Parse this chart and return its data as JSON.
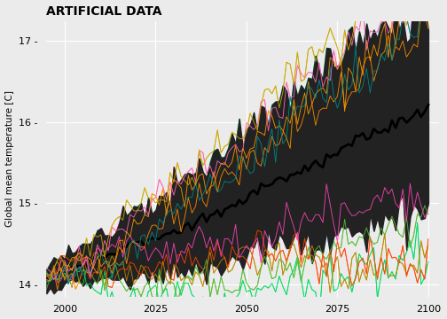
{
  "title": "ARTIFICIAL DATA",
  "ylabel": "Global mean temperature [C]",
  "xlim": [
    1995,
    2103
  ],
  "ylim": [
    13.85,
    17.25
  ],
  "xticks": [
    2000,
    2025,
    2050,
    2075,
    2100
  ],
  "yticks": [
    14,
    15,
    16,
    17
  ],
  "background_color": "#EBEBEB",
  "grid_color": "white",
  "mean_color": "black",
  "band_color": "#222222",
  "seed": 123,
  "n_models": 25,
  "line_colors": [
    "#8080FF",
    "#00BFFF",
    "#FF69B4",
    "#00CED1",
    "#55BB33",
    "#FF8C00",
    "#FF44BB",
    "#3399FF",
    "#00DD66",
    "#CCAA00",
    "#FF6347",
    "#AA77EE",
    "#00CC88",
    "#FF4400",
    "#33CCCC",
    "#DD66DD",
    "#99EE00",
    "#FF2255",
    "#22AAFF",
    "#FF9900",
    "#AAFF22",
    "#FF00FF",
    "#008888",
    "#BB8800",
    "#8800DD"
  ]
}
